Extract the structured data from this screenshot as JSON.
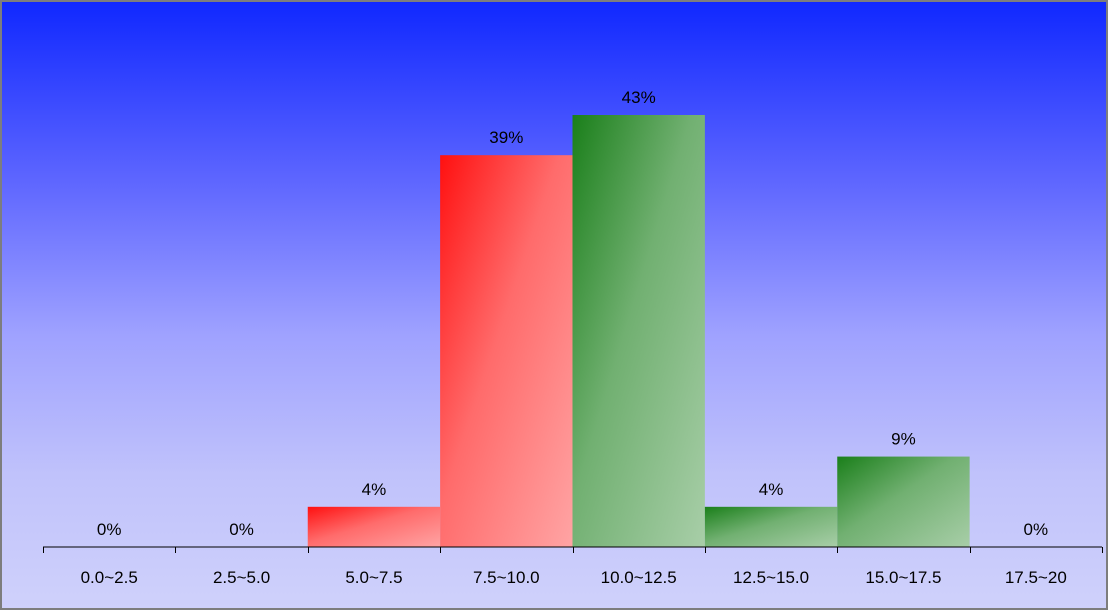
{
  "chart_data": {
    "type": "bar",
    "title": "",
    "xlabel": "",
    "ylabel": "",
    "categories": [
      "0.0~2.5",
      "2.5~5.0",
      "5.0~7.5",
      "7.5~10.0",
      "10.0~12.5",
      "12.5~15.0",
      "15.0~17.5",
      "17.5~20"
    ],
    "values": [
      0,
      0,
      4,
      39,
      43,
      4,
      9,
      0
    ],
    "value_labels": [
      "0%",
      "0%",
      "4%",
      "39%",
      "43%",
      "4%",
      "9%",
      "0%"
    ],
    "bar_colors": [
      "#ff1010",
      "#ff1010",
      "#ff1010",
      "#ff1010",
      "#1a7f1a",
      "#1a7f1a",
      "#1a7f1a",
      "#1a7f1a"
    ],
    "ylim": [
      0,
      43
    ],
    "grid": false,
    "legend": "none",
    "background": "blue-to-lavender gradient"
  }
}
